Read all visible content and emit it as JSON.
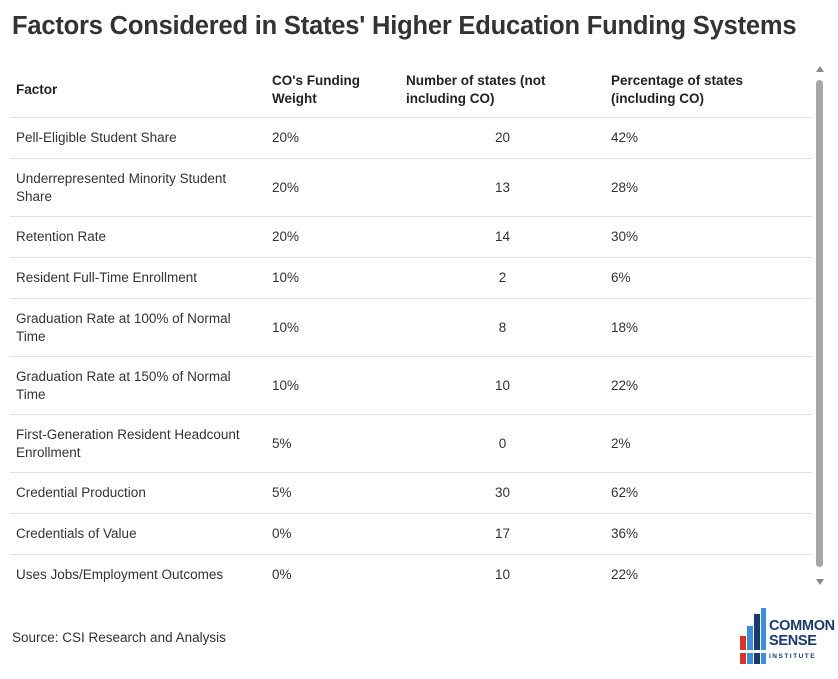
{
  "title": "Factors Considered in States' Higher Education Funding Systems",
  "source": "Source: CSI Research and Analysis",
  "logo": {
    "line1": "COMMON",
    "line2": "SENSE",
    "line3": "INSTITUTE",
    "colors": [
      "#1a3a6e",
      "#3a8fd6",
      "#d9342b"
    ]
  },
  "chart_data": {
    "type": "table",
    "columns": [
      "Factor",
      "CO's Funding Weight",
      "Number of states (not including CO)",
      "Percentage of states (including CO)"
    ],
    "rows": [
      [
        "Pell-Eligible Student Share",
        "20%",
        "20",
        "42%"
      ],
      [
        "Underrepresented Minority Student Share",
        "20%",
        "13",
        "28%"
      ],
      [
        "Retention Rate",
        "20%",
        "14",
        "30%"
      ],
      [
        "Resident Full-Time Enrollment",
        "10%",
        "2",
        "6%"
      ],
      [
        "Graduation Rate at 100% of Normal Time",
        "10%",
        "8",
        "18%"
      ],
      [
        "Graduation Rate at 150% of Normal Time",
        "10%",
        "10",
        "22%"
      ],
      [
        "First-Generation Resident Headcount Enrollment",
        "5%",
        "0",
        "2%"
      ],
      [
        "Credential Production",
        "5%",
        "30",
        "62%"
      ],
      [
        "Credentials of Value",
        "0%",
        "17",
        "36%"
      ],
      [
        "Uses Jobs/Employment Outcomes",
        "0%",
        "10",
        "22%"
      ]
    ]
  }
}
